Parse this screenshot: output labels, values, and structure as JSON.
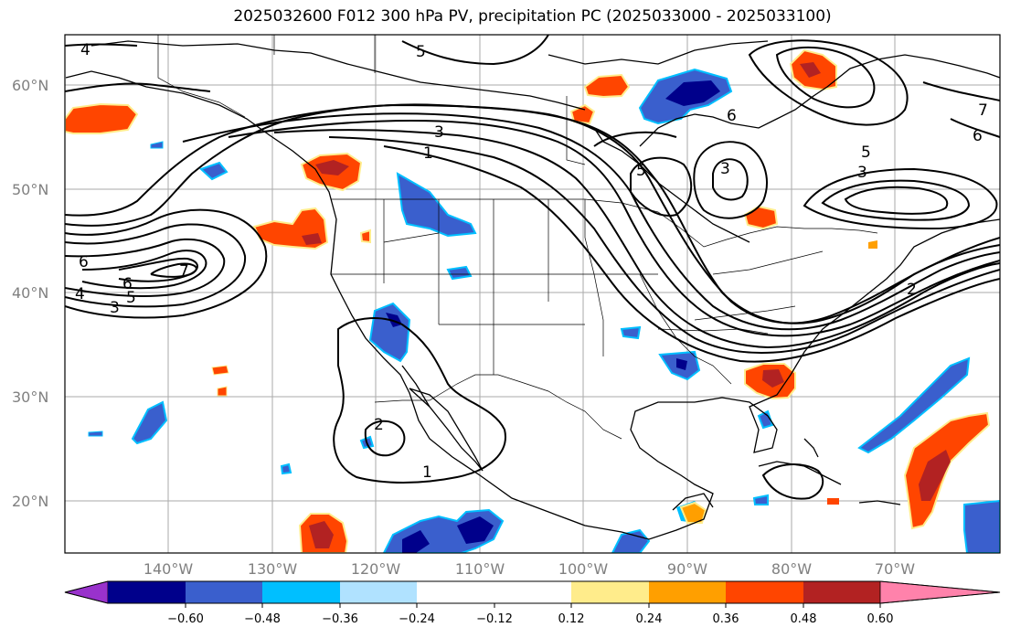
{
  "title": "2025032600 F012 300 hPa PV, precipitation PC (2025033000 - 2025033100)",
  "latitude_labels": [
    "60°N",
    "50°N",
    "40°N",
    "30°N",
    "20°N"
  ],
  "longitude_labels": [
    "140°W",
    "130°W",
    "120°W",
    "110°W",
    "100°W",
    "90°W",
    "80°W",
    "70°W"
  ],
  "colorbar": {
    "tick_labels": [
      "−0.60",
      "−0.48",
      "−0.36",
      "−0.24",
      "−0.12",
      "0.12",
      "0.24",
      "0.36",
      "0.48",
      "0.60"
    ],
    "colors": [
      "#9932cc",
      "#00008b",
      "#3a5fcd",
      "#00bfff",
      "#b0e2ff",
      "#ffffff",
      "#ffec8b",
      "#ff9f00",
      "#ff4500",
      "#b22222",
      "#ff82ab"
    ]
  },
  "pv_contour_labels": [
    "1",
    "2",
    "3",
    "4",
    "5",
    "6",
    "7"
  ]
}
